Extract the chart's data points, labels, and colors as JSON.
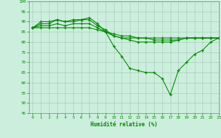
{
  "title": "",
  "xlabel": "Humidité relative (%)",
  "ylabel": "",
  "background_color": "#cceedd",
  "grid_color": "#aaccbb",
  "line_color": "#008800",
  "xlim": [
    -0.5,
    23
  ],
  "ylim": [
    45,
    100
  ],
  "yticks": [
    45,
    50,
    55,
    60,
    65,
    70,
    75,
    80,
    85,
    90,
    95,
    100
  ],
  "xticks": [
    0,
    1,
    2,
    3,
    4,
    5,
    6,
    7,
    8,
    9,
    10,
    11,
    12,
    13,
    14,
    15,
    16,
    17,
    18,
    19,
    20,
    21,
    22,
    23
  ],
  "series": [
    [
      87,
      90,
      90,
      91,
      90,
      91,
      91,
      92,
      89,
      85,
      78,
      73,
      67,
      66,
      65,
      65,
      62,
      54,
      66,
      70,
      74,
      76,
      80,
      82
    ],
    [
      87,
      89,
      89,
      91,
      90,
      90,
      91,
      91,
      88,
      86,
      83,
      82,
      81,
      80,
      80,
      80,
      80,
      80,
      81,
      82,
      82,
      82,
      82,
      82
    ],
    [
      87,
      88,
      88,
      89,
      88,
      89,
      89,
      89,
      87,
      85,
      83,
      82,
      82,
      82,
      82,
      81,
      81,
      81,
      81,
      82,
      82,
      82,
      82,
      82
    ],
    [
      87,
      87,
      87,
      87,
      87,
      87,
      87,
      87,
      86,
      85,
      84,
      83,
      83,
      82,
      82,
      82,
      82,
      82,
      82,
      82,
      82,
      82,
      82,
      82
    ]
  ]
}
